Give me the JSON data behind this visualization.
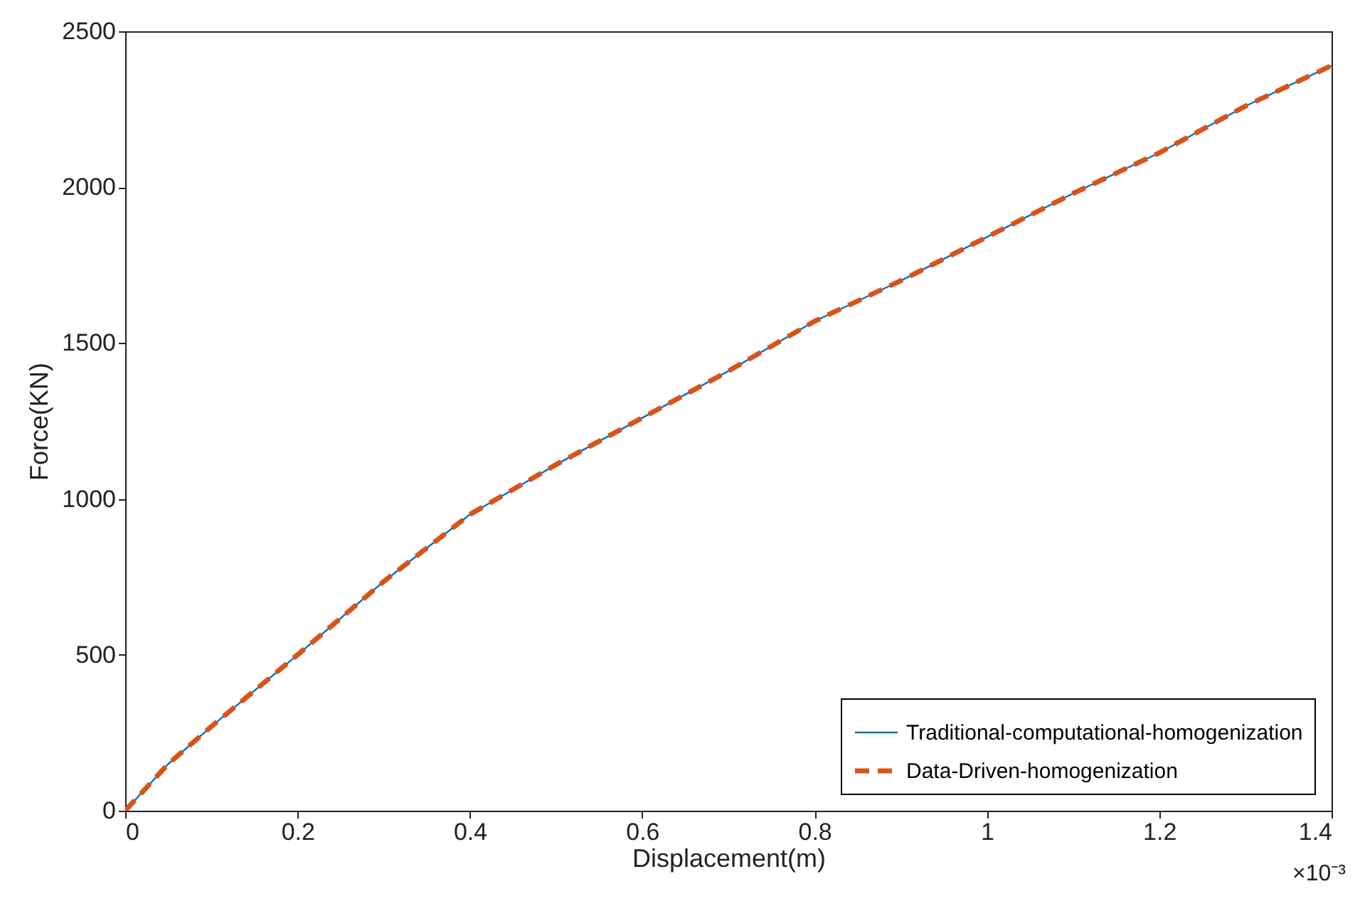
{
  "chart_data": {
    "type": "line",
    "xlabel": "Displacement(m)",
    "ylabel": "Force(KN)",
    "x": [
      0,
      0.05,
      0.1,
      0.2,
      0.3,
      0.4,
      0.5,
      0.6,
      0.7,
      0.8,
      0.9,
      1.0,
      1.1,
      1.2,
      1.3,
      1.4
    ],
    "series": [
      {
        "name": "Traditional-computational-homogenization",
        "color": "#0072bd",
        "line_style": "solid",
        "values": [
          0,
          150,
          270,
          500,
          735,
          950,
          1110,
          1260,
          1410,
          1570,
          1700,
          1840,
          1980,
          2110,
          2260,
          2390
        ]
      },
      {
        "name": "Data-Driven-homogenization",
        "color": "#d95319",
        "line_style": "dashed",
        "values": [
          0,
          150,
          270,
          500,
          735,
          950,
          1110,
          1260,
          1410,
          1570,
          1700,
          1840,
          1980,
          2110,
          2260,
          2390
        ]
      }
    ],
    "xlim": [
      0,
      1.4
    ],
    "xticks": [
      0,
      0.2,
      0.4,
      0.6,
      0.8,
      1,
      1.2,
      1.4
    ],
    "ylim": [
      0,
      2500
    ],
    "yticks": [
      0,
      500,
      1000,
      1500,
      2000,
      2500
    ],
    "legend": "bottom right",
    "grid": false,
    "marker": "none",
    "annotations": [
      "×10⁻³"
    ]
  }
}
